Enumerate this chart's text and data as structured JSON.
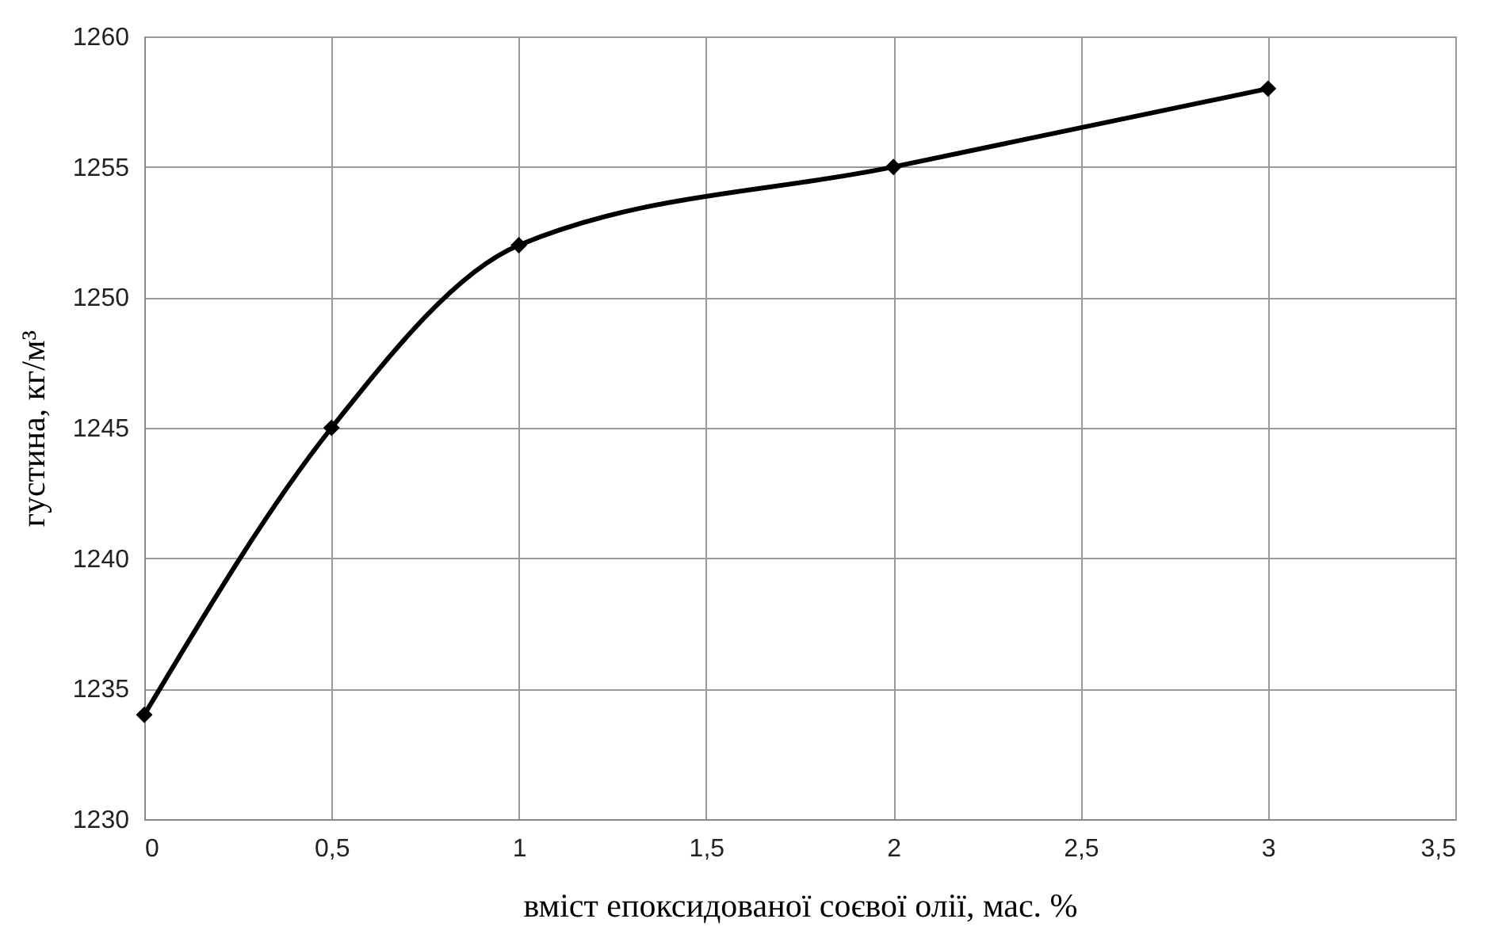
{
  "chart_data": {
    "type": "line",
    "xlabel": "вміст епоксидованої соєвої олії, мас. %",
    "ylabel": "густина, кг/м³",
    "x": [
      0,
      0.5,
      1,
      2,
      3
    ],
    "series": [
      {
        "color": "#000000",
        "values": [
          1234,
          1245,
          1252,
          1255,
          1258
        ]
      }
    ],
    "xlim": [
      0,
      3.5
    ],
    "xticks": [
      0,
      {
        "value": 0.5,
        "label": "0,5"
      },
      1,
      {
        "value": 1.5,
        "label": "1,5"
      },
      2,
      {
        "value": 2.5,
        "label": "2,5"
      },
      3,
      {
        "value": 3.5,
        "label": "3,5"
      }
    ],
    "ylim": [
      1230,
      1260
    ],
    "yticks": [
      1230,
      1235,
      1240,
      1245,
      1250,
      1255,
      1260
    ],
    "grid": true,
    "marker": "diamond",
    "line_style": "solid"
  }
}
